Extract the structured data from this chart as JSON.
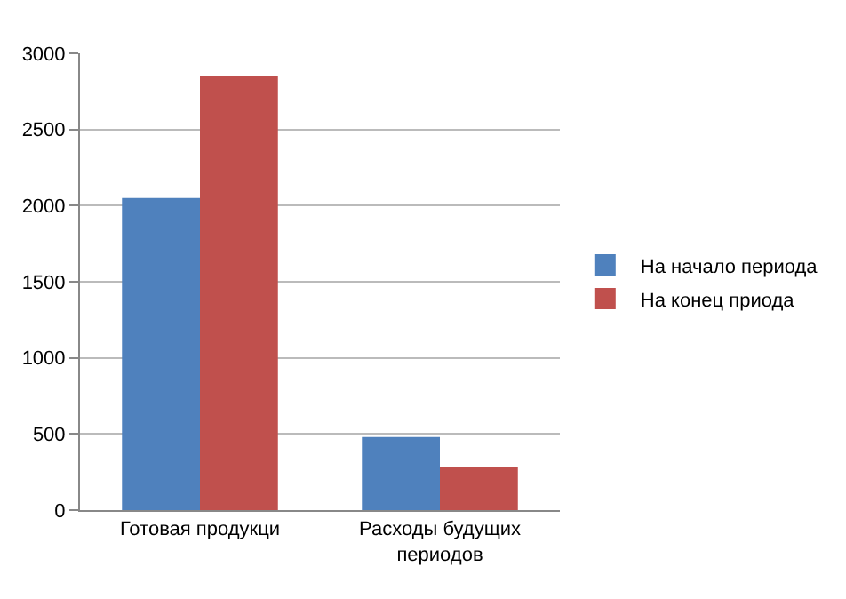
{
  "chart_data": {
    "type": "bar",
    "categories": [
      "Готовая продукци",
      "Расходы будущих периодов"
    ],
    "series": [
      {
        "name": "На начало периода",
        "color": "#4f81bd",
        "values": [
          2050,
          480
        ]
      },
      {
        "name": "На конец приода",
        "color": "#c0504d",
        "values": [
          2850,
          280
        ]
      }
    ],
    "ylim": [
      0,
      3000
    ],
    "yticks": [
      0,
      500,
      1000,
      1500,
      2000,
      2500,
      3000
    ],
    "grid": "y",
    "legend": "right"
  }
}
